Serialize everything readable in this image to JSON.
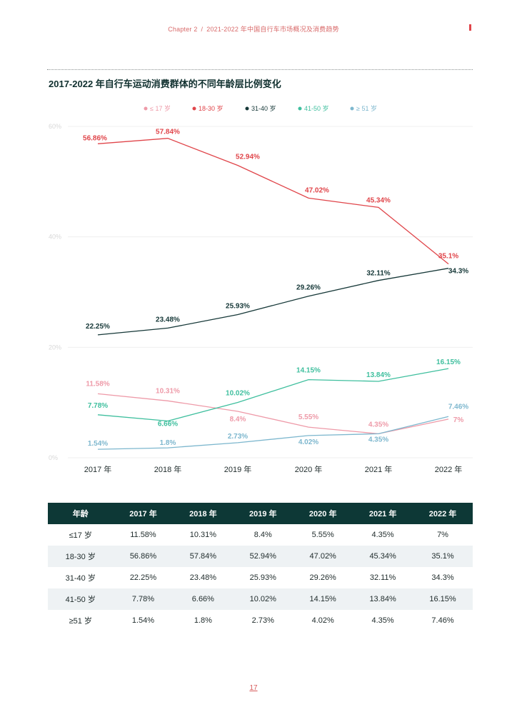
{
  "header": {
    "chapter": "Chapter 2",
    "separator": "/",
    "title": "2021-2022 年中国自行车市场概况及消费趋势"
  },
  "page_number": "17",
  "chart_data": {
    "type": "line",
    "title": "2017-2022 年自行车运动消费群体的不同年龄层比例变化",
    "categories": [
      "2017 年",
      "2018 年",
      "2019 年",
      "2020 年",
      "2021 年",
      "2022 年"
    ],
    "y_ticks": [
      "0%",
      "20%",
      "40%",
      "60%"
    ],
    "ylim": [
      0,
      60
    ],
    "legend_position": "top",
    "grid": true,
    "series": [
      {
        "name": "≤ 17 岁",
        "color": "#ee9aa8",
        "values": [
          11.58,
          10.31,
          8.4,
          5.55,
          4.35,
          7
        ],
        "labels": [
          "11.58%",
          "10.31%",
          "8.4%",
          "5.55%",
          "4.35%",
          "7%"
        ]
      },
      {
        "name": "18-30 岁",
        "color": "#e0454a",
        "values": [
          56.86,
          57.84,
          52.94,
          47.02,
          45.34,
          35.1
        ],
        "labels": [
          "56.86%",
          "57.84%",
          "52.94%",
          "47.02%",
          "45.34%",
          "35.1%"
        ]
      },
      {
        "name": "31-40 岁",
        "color": "#163838",
        "values": [
          22.25,
          23.48,
          25.93,
          29.26,
          32.11,
          34.3
        ],
        "labels": [
          "22.25%",
          "23.48%",
          "25.93%",
          "29.26%",
          "32.11%",
          "34.3%"
        ]
      },
      {
        "name": "41-50 岁",
        "color": "#3fbf9e",
        "values": [
          7.78,
          6.66,
          10.02,
          14.15,
          13.84,
          16.15
        ],
        "labels": [
          "7.78%",
          "6.66%",
          "10.02%",
          "14.15%",
          "13.84%",
          "16.15%"
        ]
      },
      {
        "name": "≥ 51 岁",
        "color": "#7db7ce",
        "values": [
          1.54,
          1.8,
          2.73,
          4.02,
          4.35,
          7.46
        ],
        "labels": [
          "1.54%",
          "1.8%",
          "2.73%",
          "4.02%",
          "4.35%",
          "7.46%"
        ]
      }
    ]
  },
  "table": {
    "headers": [
      "年龄",
      "2017 年",
      "2018 年",
      "2019 年",
      "2020 年",
      "2021 年",
      "2022 年"
    ],
    "rows": [
      [
        "≤17 岁",
        "11.58%",
        "10.31%",
        "8.4%",
        "5.55%",
        "4.35%",
        "7%"
      ],
      [
        "18-30 岁",
        "56.86%",
        "57.84%",
        "52.94%",
        "47.02%",
        "45.34%",
        "35.1%"
      ],
      [
        "31-40 岁",
        "22.25%",
        "23.48%",
        "25.93%",
        "29.26%",
        "32.11%",
        "34.3%"
      ],
      [
        "41-50 岁",
        "7.78%",
        "6.66%",
        "10.02%",
        "14.15%",
        "13.84%",
        "16.15%"
      ],
      [
        "≥51 岁",
        "1.54%",
        "1.8%",
        "2.73%",
        "4.02%",
        "4.35%",
        "7.46%"
      ]
    ]
  }
}
